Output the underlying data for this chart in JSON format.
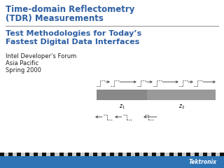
{
  "title_line1": "Time-domain Reflectometry",
  "title_line2": "(TDR) Measurements",
  "subtitle_line1": "Test Methodologies for Today’s",
  "subtitle_line2": "Fastest Digital Data Interfaces",
  "body_line1": "Intel Developer’s Forum",
  "body_line2": "Asia Pacific",
  "body_line3": "Spring 2000",
  "tektronix": "Tektronix",
  "title_color": "#2E5FA3",
  "subtitle_color": "#2E5FA3",
  "body_color": "#222222",
  "bg_color": "#FFFFFF",
  "footer_bar_color": "#2E75B6",
  "separator_color": "#999999",
  "box1_color": "#888888",
  "box2_color": "#999999",
  "signal_color": "#333333",
  "title_fontsize": 8.5,
  "subtitle_fontsize": 8.0,
  "body_fontsize": 6.0
}
